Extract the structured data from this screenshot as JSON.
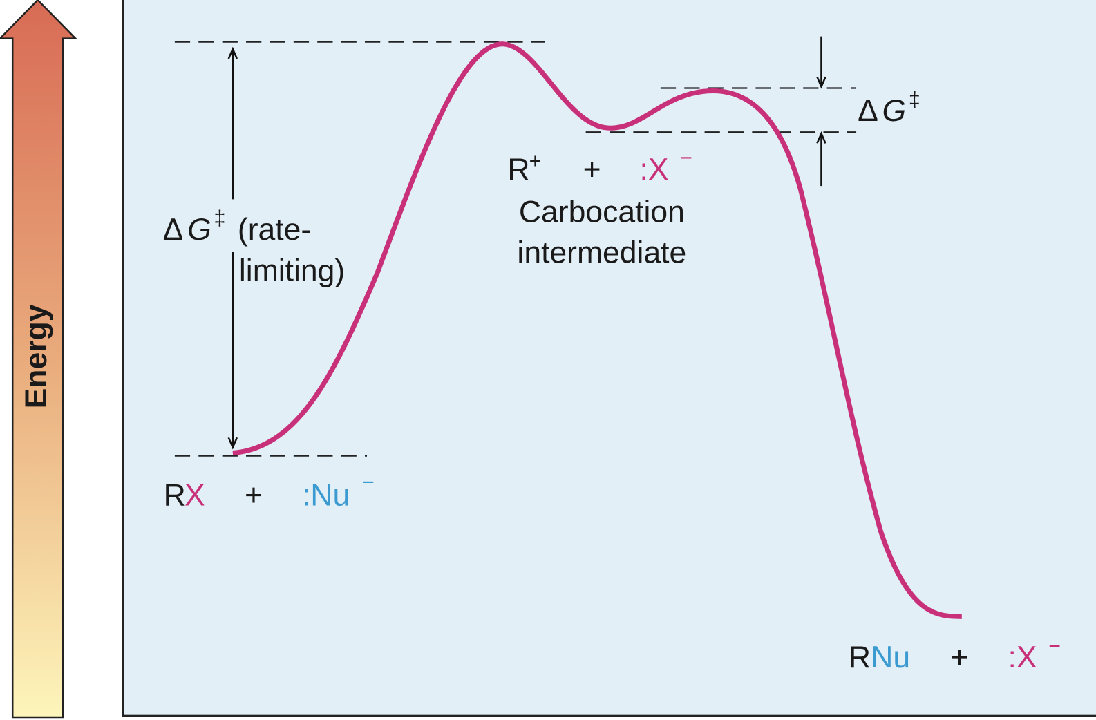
{
  "energy_axis": {
    "label": "Energy"
  },
  "rate_limiting": {
    "delta": "Δ",
    "G": "G",
    "dagger": "‡",
    "lines": [
      "(rate-",
      "limiting)"
    ]
  },
  "second_barrier": {
    "delta": "Δ",
    "G": "G",
    "dagger": "‡"
  },
  "reactants": {
    "R": "R",
    "X": "X",
    "plus": "+",
    "nucleophile": ":Nu",
    "charge": "−"
  },
  "intermediate": {
    "cation": "R",
    "charge": "+",
    "plus": "+",
    "leaving_group": ":X",
    "anion_charge": "−",
    "lines": [
      "Carbocation",
      "intermediate"
    ]
  },
  "products": {
    "R": "R",
    "Nu": "Nu",
    "plus": "+",
    "leaving_group": ":X",
    "charge": "−"
  }
}
